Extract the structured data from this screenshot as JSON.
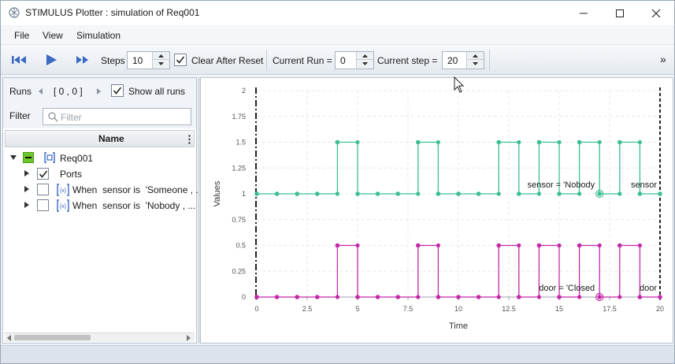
{
  "window": {
    "title": "STIMULUS Plotter : simulation of Req001",
    "controls": [
      "minimize-icon",
      "maximize-icon",
      "close-icon"
    ]
  },
  "menu": {
    "items": [
      "File",
      "View",
      "Simulation"
    ]
  },
  "toolbar": {
    "steps_label": "Steps",
    "steps_value": "10",
    "clear_after_reset_label": "Clear After Reset",
    "clear_after_reset_checked": true,
    "current_run_label": "Current Run =",
    "current_run_value": "0",
    "current_step_label": "Current step =",
    "current_step_value": "20",
    "overflow": "»",
    "icons": [
      "rewind-icon",
      "play-icon",
      "fast-forward-icon"
    ]
  },
  "runs": {
    "label": "Runs",
    "range": "[ 0 , 0 ]",
    "show_all_label": "Show all runs",
    "show_all_checked": true
  },
  "filter": {
    "label": "Filter",
    "placeholder": "Filter"
  },
  "grid": {
    "column_name": "Name"
  },
  "tree": {
    "root": "Req001",
    "items": [
      {
        "label": "Ports",
        "checked": true
      },
      {
        "label": "When  sensor is  'Someone , ..",
        "checked": false
      },
      {
        "label": "When  sensor is  'Nobody , ...",
        "checked": false
      }
    ]
  },
  "colors": {
    "sensor": "#3dbf8f",
    "door": "#c42aa8",
    "accent": "#3a6ac2"
  },
  "chart_data": {
    "type": "line",
    "step": true,
    "xlabel": "Time",
    "ylabel": "Values",
    "xlim": [
      0,
      20
    ],
    "ylim": [
      0,
      2
    ],
    "xticks": [
      "0",
      "2.5",
      "5",
      "7.5",
      "10",
      "12.5",
      "15",
      "17.5",
      "20"
    ],
    "yticks": [
      "0",
      "0.25",
      "0.5",
      "0.75",
      "1",
      "1.25",
      "1.5",
      "1.75",
      "2"
    ],
    "x": [
      0,
      1,
      2,
      3,
      4,
      5,
      6,
      7,
      8,
      9,
      10,
      11,
      12,
      13,
      14,
      15,
      16,
      17,
      18,
      19,
      20
    ],
    "series": [
      {
        "name": "sensor",
        "values": [
          1,
          1,
          1,
          1,
          1.5,
          1,
          1,
          1,
          1.5,
          1,
          1,
          1,
          1.5,
          1,
          1.5,
          1,
          1.5,
          1,
          1.5,
          1,
          1
        ]
      },
      {
        "name": "door",
        "values": [
          0,
          0,
          0,
          0,
          0.5,
          0,
          0,
          0,
          0.5,
          0,
          0,
          0,
          0.5,
          0,
          0.5,
          0,
          0.5,
          0,
          0.5,
          0,
          0
        ]
      }
    ],
    "annotations": [
      {
        "text": "sensor = 'Nobody",
        "x": 17,
        "y": 1
      },
      {
        "text": "sensor",
        "x": 20,
        "y": 1
      },
      {
        "text": "door = 'Closed",
        "x": 17,
        "y": 0
      },
      {
        "text": "door",
        "x": 20,
        "y": 0
      }
    ],
    "cursor_x": 17,
    "grid": true
  }
}
